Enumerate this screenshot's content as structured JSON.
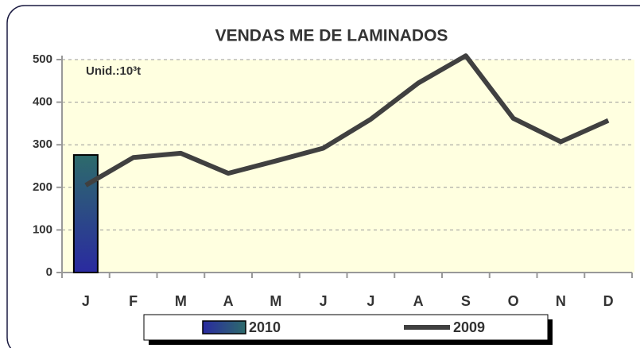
{
  "chart_data": {
    "type": "combo",
    "title": "VENDAS ME DE LAMINADOS",
    "annotation": "Unid.:10³t",
    "categories": [
      "J",
      "F",
      "M",
      "A",
      "M",
      "J",
      "J",
      "A",
      "S",
      "O",
      "N",
      "D"
    ],
    "series": [
      {
        "name": "2010",
        "type": "bar",
        "color": "#2a3a9a",
        "values": [
          276,
          null,
          null,
          null,
          null,
          null,
          null,
          null,
          null,
          null,
          null,
          null
        ]
      },
      {
        "name": "2009",
        "type": "line",
        "color": "#404040",
        "values": [
          205,
          270,
          280,
          233,
          262,
          292,
          360,
          445,
          509,
          362,
          307,
          357
        ]
      }
    ],
    "ylim": [
      0,
      500
    ],
    "yticks": [
      0,
      100,
      200,
      300,
      400,
      500
    ],
    "grid": true,
    "legend": "bottom"
  }
}
